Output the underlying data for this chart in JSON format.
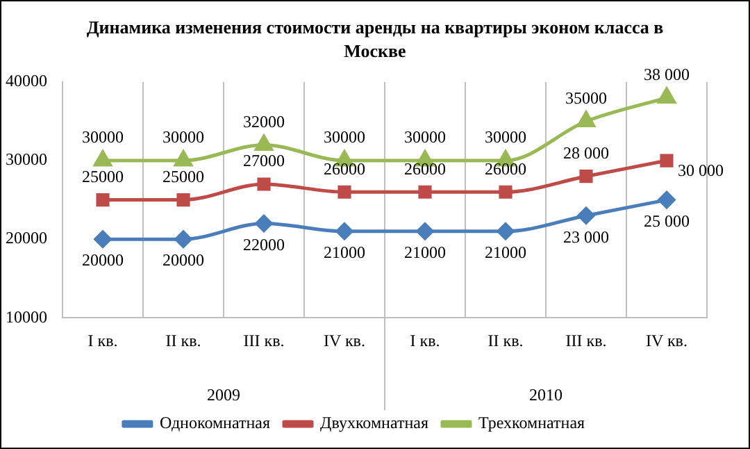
{
  "chart_data": {
    "type": "line",
    "title": "Динамика изменения стоимости аренды  на квартиры эконом класса в Москве",
    "categories": [
      "I кв.",
      "II кв.",
      "III кв.",
      "IV кв.",
      "I кв.",
      "II кв.",
      "III кв.",
      "IV кв."
    ],
    "annotations": [
      "2009",
      "2010"
    ],
    "series": [
      {
        "name": "Однокомнатная",
        "color": "#4a7ebb",
        "marker": "diamond",
        "values": [
          20000,
          20000,
          22000,
          21000,
          21000,
          21000,
          23000,
          25000
        ],
        "value_labels": [
          "20000",
          "20000",
          "22000",
          "21000",
          "21000",
          "21000",
          "23 000",
          "25 000"
        ]
      },
      {
        "name": "Двухкомнатная",
        "color": "#be4b48",
        "marker": "square",
        "values": [
          25000,
          25000,
          27000,
          26000,
          26000,
          26000,
          28000,
          30000
        ],
        "value_labels": [
          "25000",
          "25000",
          "27000",
          "26000",
          "26000",
          "26000",
          "28 000",
          "30 000"
        ]
      },
      {
        "name": "Трехкомнатная",
        "color": "#98b954",
        "marker": "triangle",
        "values": [
          30000,
          30000,
          32000,
          30000,
          30000,
          30000,
          35000,
          38000
        ],
        "value_labels": [
          "30000",
          "30000",
          "32000",
          "30000",
          "30000",
          "30000",
          "35000",
          "38 000"
        ]
      }
    ],
    "ylim": [
      10000,
      40000
    ],
    "yticks": [
      10000,
      20000,
      30000,
      40000
    ],
    "grid": "x",
    "legend": "bottom"
  }
}
